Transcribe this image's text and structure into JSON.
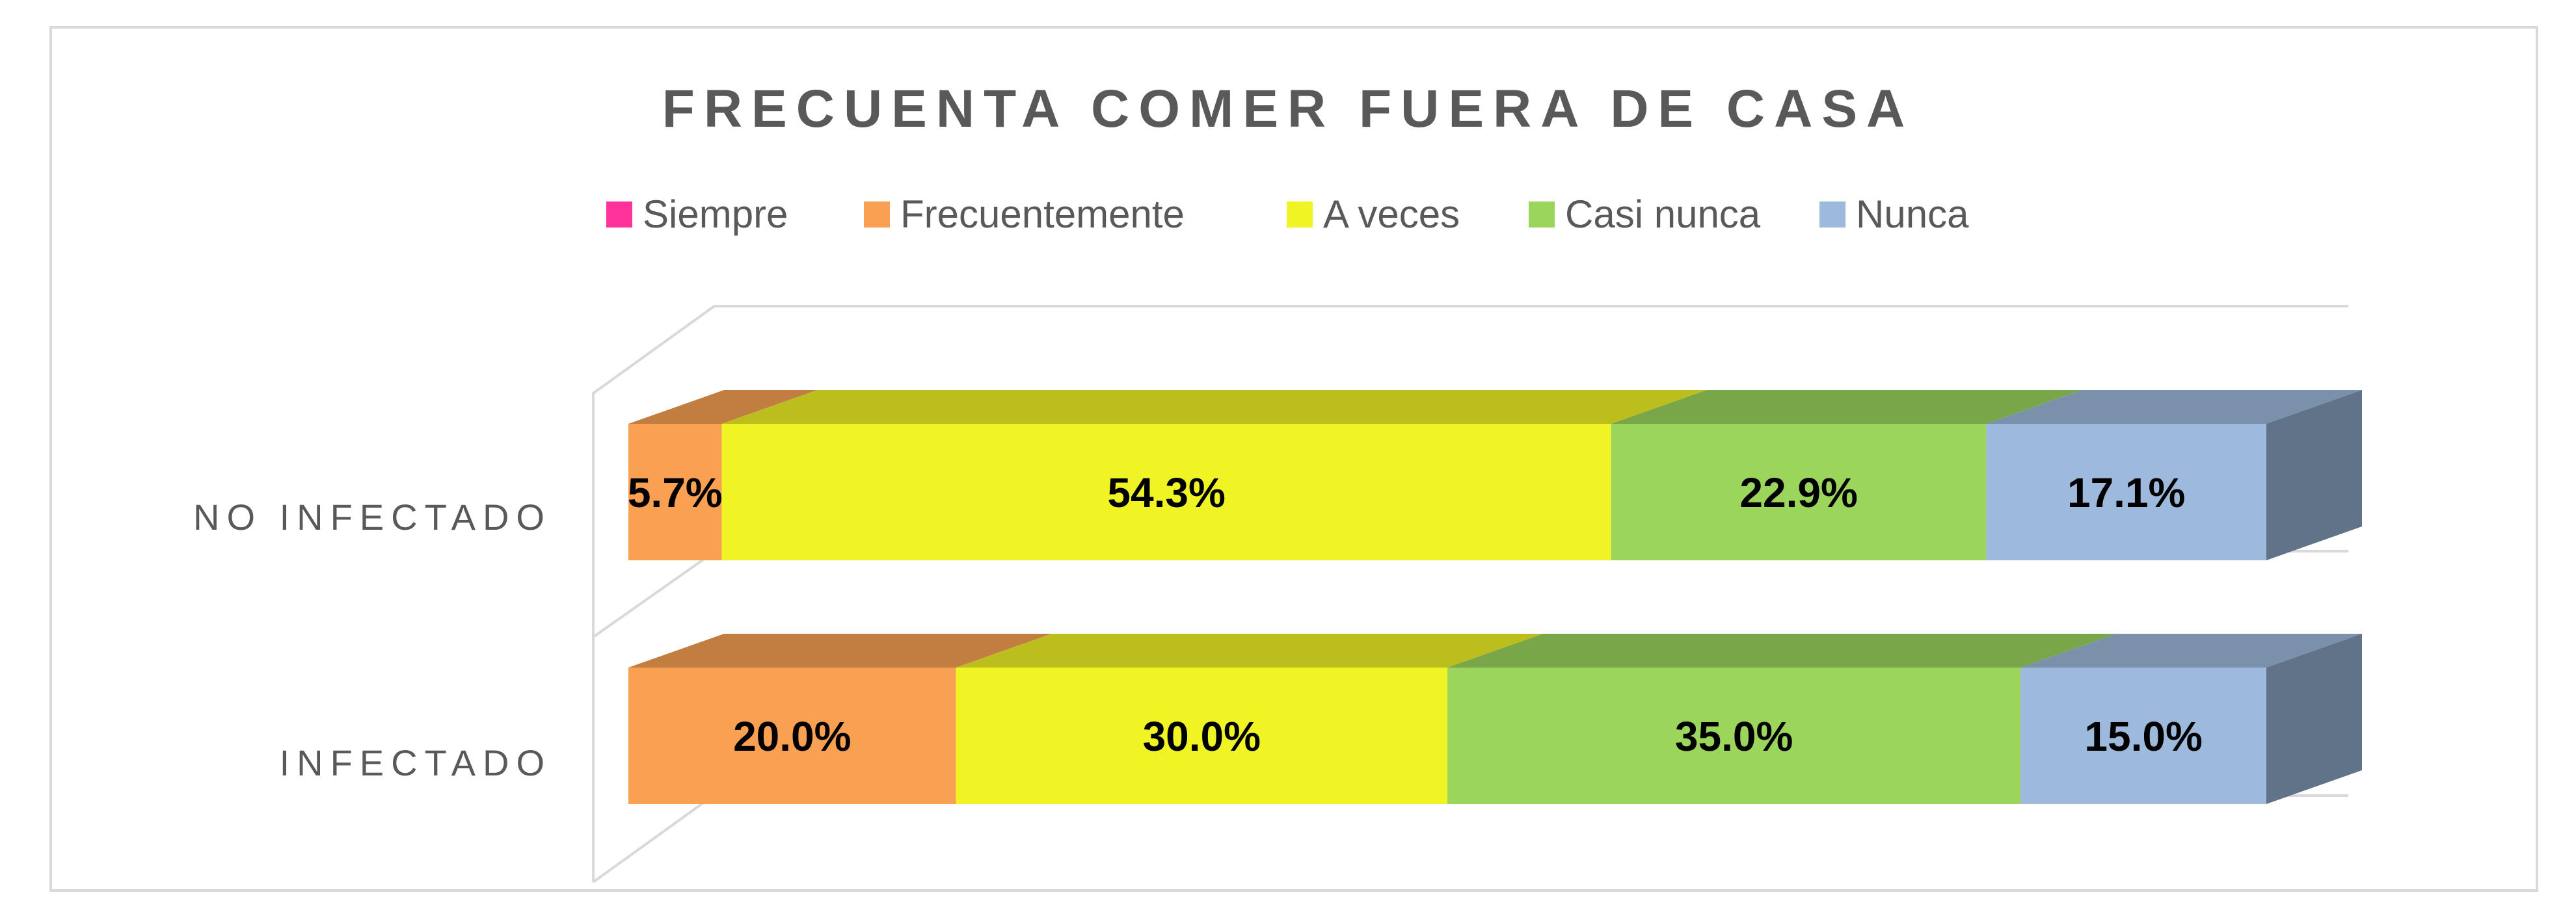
{
  "chart_data": {
    "type": "bar",
    "orientation": "horizontal",
    "stacked": "100%",
    "three_d": true,
    "title": "FRECUENTA COMER FUERA DE CASA",
    "legend_position": "top",
    "grid": false,
    "categories": [
      "NO INFECTADO",
      "INFECTADO"
    ],
    "series": [
      {
        "name": "Siempre",
        "color": "#FF3399",
        "values": [
          0.0,
          0.0
        ]
      },
      {
        "name": "Frecuentemente",
        "color": "#F9A052",
        "values": [
          5.7,
          20.0
        ]
      },
      {
        "name": "A veces",
        "color": "#F0F424",
        "values": [
          54.3,
          30.0
        ]
      },
      {
        "name": "Casi nunca",
        "color": "#9BD55C",
        "values": [
          22.9,
          35.0
        ]
      },
      {
        "name": "Nunca",
        "color": "#9DBADC",
        "values": [
          17.1,
          15.0
        ]
      }
    ],
    "data_labels": [
      [
        "",
        "5.7%",
        "54.3%",
        "22.9%",
        "17.1%"
      ],
      [
        "",
        "20.0%",
        "30.0%",
        "35.0%",
        "15.0%"
      ]
    ]
  }
}
